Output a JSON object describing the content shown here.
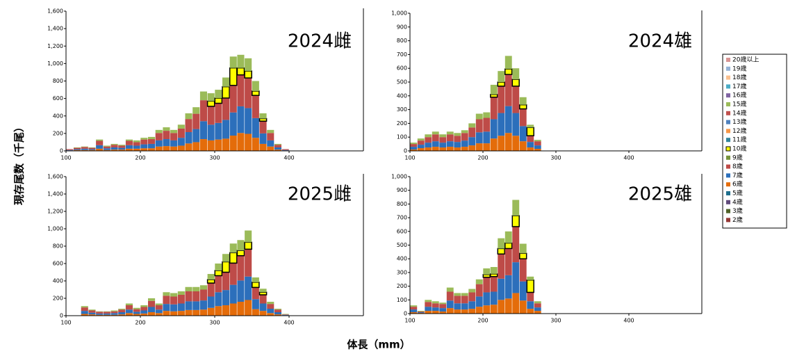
{
  "figure": {
    "ylabel": "現存尾数（千尾）",
    "xlabel": "体長（mm）",
    "legend": [
      {
        "name": "20歳以上",
        "color": "#d99594"
      },
      {
        "name": "19歳",
        "color": "#95b3d7"
      },
      {
        "name": "18歳",
        "color": "#fac090"
      },
      {
        "name": "17歳",
        "color": "#4bacc6"
      },
      {
        "name": "16歳",
        "color": "#8064a2"
      },
      {
        "name": "15歳",
        "color": "#9bbb59"
      },
      {
        "name": "14歳",
        "color": "#c0504d"
      },
      {
        "name": "13歳",
        "color": "#4f81bd"
      },
      {
        "name": "12歳",
        "color": "#f79646"
      },
      {
        "name": "11歳",
        "color": "#31859c"
      },
      {
        "name": "10歳",
        "color": "#ffff00"
      },
      {
        "name": "9歳",
        "color": "#77933c"
      },
      {
        "name": "8歳",
        "color": "#be4b48"
      },
      {
        "name": "7歳",
        "color": "#2c6fbb"
      },
      {
        "name": "6歳",
        "color": "#e46c0a"
      },
      {
        "name": "5歳",
        "color": "#1f6e8c"
      },
      {
        "name": "4歳",
        "color": "#604a7b"
      },
      {
        "name": "3歳",
        "color": "#4f6228"
      },
      {
        "name": "2歳",
        "color": "#953735"
      }
    ]
  },
  "chart_data": [
    {
      "type": "histogram",
      "title": "2024雌",
      "bins": [
        100,
        110,
        120,
        130,
        140,
        150,
        160,
        170,
        180,
        190,
        200,
        210,
        220,
        230,
        240,
        250,
        260,
        270,
        280,
        290,
        300,
        310,
        320,
        330,
        340,
        350,
        360,
        370,
        380,
        390,
        400
      ],
      "xlim": [
        100,
        500
      ],
      "xticks": [
        100,
        200,
        300,
        400
      ],
      "ylim": [
        0,
        1600
      ],
      "yticks": [
        0,
        200,
        400,
        600,
        800,
        {
          "value": 1000,
          "label": "1,000"
        },
        {
          "value": 1200,
          "label": "1,200"
        },
        {
          "value": 1400,
          "label": "1,400"
        },
        {
          "value": 1600,
          "label": "1,600"
        }
      ],
      "series": [
        {
          "name": "6歳",
          "color": "#e46c0a",
          "values": [
            5,
            10,
            10,
            10,
            25,
            10,
            15,
            15,
            25,
            25,
            30,
            30,
            50,
            55,
            50,
            60,
            85,
            100,
            135,
            120,
            130,
            140,
            175,
            205,
            195,
            150,
            80,
            50,
            15,
            5
          ]
        },
        {
          "name": "7歳",
          "color": "#2c6fbb",
          "values": [
            5,
            10,
            15,
            10,
            40,
            20,
            25,
            20,
            40,
            35,
            45,
            50,
            70,
            80,
            70,
            90,
            130,
            150,
            205,
            180,
            190,
            215,
            265,
            305,
            295,
            225,
            120,
            70,
            25,
            5
          ]
        },
        {
          "name": "8歳",
          "color": "#be4b48",
          "values": [
            10,
            15,
            20,
            15,
            50,
            20,
            30,
            25,
            50,
            40,
            55,
            55,
            85,
            95,
            85,
            105,
            150,
            175,
            240,
            210,
            225,
            250,
            310,
            360,
            345,
            260,
            140,
            85,
            30,
            10
          ]
        },
        {
          "name": "10歳",
          "color": "#ffff00",
          "edgecolor": "#000000",
          "values": [
            0,
            0,
            0,
            0,
            0,
            0,
            0,
            0,
            0,
            0,
            0,
            0,
            0,
            0,
            0,
            0,
            0,
            0,
            0,
            60,
            60,
            130,
            200,
            80,
            80,
            50,
            30,
            0,
            0,
            0
          ]
        },
        {
          "name": "15歳",
          "color": "#9bbb59",
          "values": [
            0,
            5,
            5,
            5,
            15,
            10,
            10,
            10,
            15,
            20,
            20,
            25,
            35,
            40,
            35,
            45,
            65,
            75,
            100,
            90,
            95,
            105,
            130,
            150,
            145,
            115,
            60,
            35,
            10,
            0
          ]
        }
      ]
    },
    {
      "type": "histogram",
      "title": "2024雄",
      "bins": [
        100,
        110,
        120,
        130,
        140,
        150,
        160,
        170,
        180,
        190,
        200,
        210,
        220,
        230,
        240,
        250,
        260,
        270,
        280
      ],
      "xlim": [
        100,
        500
      ],
      "xticks": [
        100,
        200,
        300,
        400
      ],
      "ylim": [
        0,
        1000
      ],
      "yticks": [
        0,
        100,
        200,
        300,
        400,
        500,
        600,
        700,
        800,
        900,
        {
          "value": 1000,
          "label": "1,000"
        }
      ],
      "series": [
        {
          "name": "6歳",
          "color": "#e46c0a",
          "values": [
            10,
            20,
            25,
            30,
            25,
            30,
            25,
            30,
            40,
            55,
            55,
            90,
            110,
            130,
            110,
            70,
            25,
            15
          ]
        },
        {
          "name": "7歳",
          "color": "#2c6fbb",
          "values": [
            20,
            25,
            35,
            40,
            35,
            40,
            40,
            45,
            60,
            80,
            85,
            140,
            165,
            195,
            165,
            110,
            40,
            25
          ]
        },
        {
          "name": "8歳",
          "color": "#be4b48",
          "values": [
            20,
            30,
            40,
            50,
            40,
            50,
            45,
            55,
            70,
            95,
            100,
            160,
            195,
            230,
            195,
            125,
            45,
            30
          ]
        },
        {
          "name": "10歳",
          "color": "#ffff00",
          "edgecolor": "#000000",
          "values": [
            0,
            0,
            0,
            0,
            0,
            0,
            0,
            0,
            0,
            0,
            0,
            20,
            30,
            40,
            50,
            30,
            60,
            0
          ]
        },
        {
          "name": "15歳",
          "color": "#9bbb59",
          "values": [
            10,
            15,
            20,
            20,
            20,
            20,
            20,
            20,
            30,
            40,
            40,
            70,
            80,
            95,
            80,
            55,
            20,
            10
          ]
        }
      ]
    },
    {
      "type": "histogram",
      "title": "2025雌",
      "bins": [
        100,
        110,
        120,
        130,
        140,
        150,
        160,
        170,
        180,
        190,
        200,
        210,
        220,
        230,
        240,
        250,
        260,
        270,
        280,
        290,
        300,
        310,
        320,
        330,
        340,
        350,
        360,
        370,
        380,
        390,
        400
      ],
      "xlim": [
        100,
        500
      ],
      "xticks": [
        100,
        200,
        300,
        400
      ],
      "ylim": [
        0,
        1600
      ],
      "yticks": [
        0,
        200,
        400,
        600,
        800,
        {
          "value": 1000,
          "label": "1,000"
        },
        {
          "value": 1200,
          "label": "1,200"
        },
        {
          "value": 1400,
          "label": "1,400"
        },
        {
          "value": 1600,
          "label": "1,600"
        }
      ],
      "series": [
        {
          "name": "6歳",
          "color": "#e46c0a",
          "values": [
            0,
            0,
            20,
            15,
            10,
            10,
            10,
            15,
            30,
            20,
            25,
            40,
            30,
            55,
            50,
            55,
            65,
            65,
            70,
            90,
            110,
            120,
            140,
            160,
            180,
            75,
            55,
            30,
            15,
            5
          ]
        },
        {
          "name": "7歳",
          "color": "#2c6fbb",
          "values": [
            0,
            0,
            35,
            20,
            15,
            15,
            20,
            25,
            40,
            25,
            35,
            60,
            40,
            80,
            80,
            85,
            100,
            100,
            105,
            130,
            160,
            175,
            215,
            245,
            270,
            115,
            85,
            50,
            25,
            5
          ]
        },
        {
          "name": "8歳",
          "color": "#be4b48",
          "values": [
            0,
            0,
            40,
            25,
            20,
            20,
            20,
            30,
            50,
            30,
            40,
            70,
            50,
            95,
            90,
            100,
            115,
            115,
            125,
            155,
            190,
            205,
            250,
            285,
            315,
            135,
            100,
            55,
            30,
            5
          ]
        },
        {
          "name": "10歳",
          "color": "#ffff00",
          "edgecolor": "#000000",
          "values": [
            0,
            0,
            0,
            0,
            0,
            0,
            0,
            0,
            0,
            0,
            0,
            0,
            0,
            0,
            0,
            0,
            0,
            0,
            0,
            40,
            60,
            120,
            120,
            60,
            80,
            60,
            30,
            0,
            0,
            0
          ]
        },
        {
          "name": "15歳",
          "color": "#9bbb59",
          "values": [
            0,
            0,
            15,
            10,
            5,
            5,
            10,
            10,
            20,
            15,
            20,
            30,
            20,
            40,
            40,
            40,
            50,
            50,
            50,
            65,
            80,
            90,
            105,
            120,
            135,
            55,
            40,
            25,
            10,
            5
          ]
        }
      ]
    },
    {
      "type": "histogram",
      "title": "2025雄",
      "bins": [
        100,
        110,
        120,
        130,
        140,
        150,
        160,
        170,
        180,
        190,
        200,
        210,
        220,
        230,
        240,
        250,
        260,
        270,
        280
      ],
      "xlim": [
        100,
        500
      ],
      "xticks": [
        100,
        200,
        300,
        400
      ],
      "ylim": [
        0,
        1000
      ],
      "yticks": [
        0,
        100,
        200,
        300,
        400,
        500,
        600,
        700,
        800,
        900,
        {
          "value": 1000,
          "label": "1,000"
        }
      ],
      "series": [
        {
          "name": "6歳",
          "color": "#e46c0a",
          "values": [
            10,
            5,
            20,
            20,
            15,
            40,
            30,
            30,
            35,
            50,
            60,
            65,
            100,
            110,
            150,
            95,
            35,
            20
          ]
        },
        {
          "name": "7歳",
          "color": "#2c6fbb",
          "values": [
            20,
            5,
            30,
            25,
            25,
            55,
            45,
            45,
            55,
            75,
            95,
            95,
            155,
            170,
            225,
            140,
            55,
            25
          ]
        },
        {
          "name": "8歳",
          "color": "#be4b48",
          "values": [
            20,
            5,
            35,
            30,
            30,
            65,
            55,
            55,
            65,
            90,
            110,
            110,
            180,
            195,
            260,
            165,
            65,
            30
          ]
        },
        {
          "name": "10歳",
          "color": "#ffff00",
          "edgecolor": "#000000",
          "values": [
            0,
            0,
            0,
            0,
            0,
            0,
            0,
            0,
            0,
            0,
            20,
            20,
            40,
            40,
            80,
            40,
            90,
            0
          ]
        },
        {
          "name": "15歳",
          "color": "#9bbb59",
          "values": [
            10,
            5,
            15,
            15,
            10,
            30,
            20,
            20,
            25,
            35,
            45,
            50,
            75,
            85,
            115,
            70,
            25,
            15
          ]
        }
      ]
    }
  ]
}
